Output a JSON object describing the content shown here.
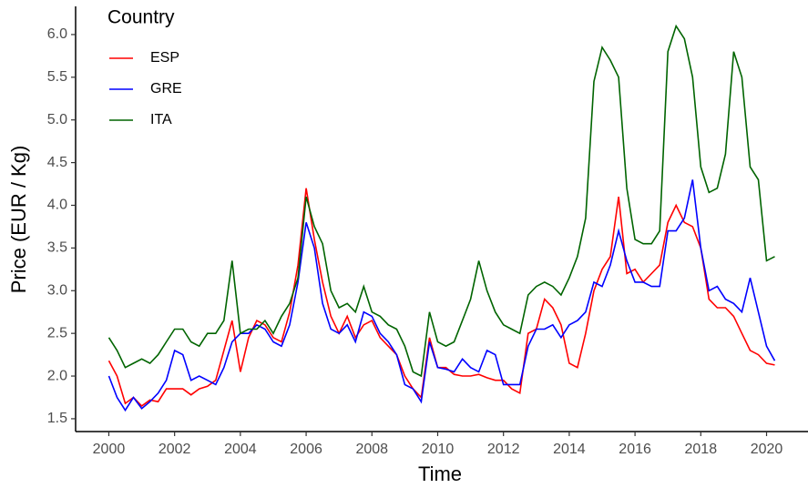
{
  "chart_data": {
    "type": "line",
    "x_label": "Time",
    "y_label": "Price (EUR / Kg)",
    "legend_title": "Country",
    "legend_position": "top-left",
    "grid": false,
    "x": [
      2000,
      2000.25,
      2000.5,
      2000.75,
      2001,
      2001.25,
      2001.5,
      2001.75,
      2002,
      2002.25,
      2002.5,
      2002.75,
      2003,
      2003.25,
      2003.5,
      2003.75,
      2004,
      2004.25,
      2004.5,
      2004.75,
      2005,
      2005.25,
      2005.5,
      2005.75,
      2006,
      2006.25,
      2006.5,
      2006.75,
      2007,
      2007.25,
      2007.5,
      2007.75,
      2008,
      2008.25,
      2008.5,
      2008.75,
      2009,
      2009.25,
      2009.5,
      2009.75,
      2010,
      2010.25,
      2010.5,
      2010.75,
      2011,
      2011.25,
      2011.5,
      2011.75,
      2012,
      2012.25,
      2012.5,
      2012.75,
      2013,
      2013.25,
      2013.5,
      2013.75,
      2014,
      2014.25,
      2014.5,
      2014.75,
      2015,
      2015.25,
      2015.5,
      2015.75,
      2016,
      2016.25,
      2016.5,
      2016.75,
      2017,
      2017.25,
      2017.5,
      2017.75,
      2018,
      2018.25,
      2018.5,
      2018.75,
      2019,
      2019.25,
      2019.5,
      2019.75,
      2020,
      2020.25
    ],
    "series": [
      {
        "name": "ESP",
        "color": "#ff0000",
        "values": [
          2.18,
          2.0,
          1.68,
          1.75,
          1.65,
          1.72,
          1.7,
          1.85,
          1.85,
          1.85,
          1.78,
          1.85,
          1.88,
          1.95,
          2.3,
          2.65,
          2.05,
          2.45,
          2.65,
          2.6,
          2.45,
          2.4,
          2.75,
          3.3,
          4.2,
          3.6,
          3.1,
          2.7,
          2.5,
          2.7,
          2.45,
          2.6,
          2.65,
          2.45,
          2.35,
          2.25,
          2.0,
          1.85,
          1.75,
          2.45,
          2.1,
          2.1,
          2.02,
          2.0,
          2.0,
          2.02,
          1.98,
          1.95,
          1.95,
          1.85,
          1.8,
          2.5,
          2.55,
          2.9,
          2.8,
          2.6,
          2.15,
          2.1,
          2.5,
          3.0,
          3.25,
          3.4,
          4.1,
          3.2,
          3.25,
          3.1,
          3.2,
          3.3,
          3.8,
          4.0,
          3.8,
          3.75,
          3.5,
          2.9,
          2.8,
          2.8,
          2.7,
          2.5,
          2.3,
          2.25,
          2.15,
          2.13
        ]
      },
      {
        "name": "GRE",
        "color": "#0000ff",
        "values": [
          2.0,
          1.75,
          1.6,
          1.75,
          1.62,
          1.7,
          1.8,
          1.95,
          2.3,
          2.25,
          1.95,
          2.0,
          1.95,
          1.9,
          2.1,
          2.4,
          2.5,
          2.5,
          2.6,
          2.55,
          2.4,
          2.35,
          2.6,
          3.1,
          3.8,
          3.5,
          2.85,
          2.55,
          2.5,
          2.6,
          2.4,
          2.75,
          2.7,
          2.5,
          2.4,
          2.25,
          1.9,
          1.85,
          1.7,
          2.4,
          2.1,
          2.08,
          2.05,
          2.2,
          2.1,
          2.05,
          2.3,
          2.25,
          1.9,
          1.9,
          1.9,
          2.35,
          2.55,
          2.55,
          2.6,
          2.45,
          2.6,
          2.65,
          2.75,
          3.1,
          3.05,
          3.3,
          3.7,
          3.35,
          3.1,
          3.1,
          3.05,
          3.05,
          3.7,
          3.7,
          3.85,
          4.3,
          3.5,
          3.0,
          3.05,
          2.9,
          2.85,
          2.75,
          3.15,
          2.75,
          2.35,
          2.18
        ]
      },
      {
        "name": "ITA",
        "color": "#006400",
        "values": [
          2.45,
          2.3,
          2.1,
          2.15,
          2.2,
          2.15,
          2.25,
          2.4,
          2.55,
          2.55,
          2.4,
          2.35,
          2.5,
          2.5,
          2.65,
          3.35,
          2.5,
          2.55,
          2.55,
          2.65,
          2.5,
          2.7,
          2.85,
          3.15,
          4.1,
          3.75,
          3.55,
          3.0,
          2.8,
          2.85,
          2.75,
          3.05,
          2.75,
          2.7,
          2.6,
          2.55,
          2.35,
          2.05,
          2.0,
          2.75,
          2.4,
          2.35,
          2.4,
          2.65,
          2.9,
          3.35,
          3.0,
          2.75,
          2.6,
          2.55,
          2.5,
          2.95,
          3.05,
          3.1,
          3.05,
          2.95,
          3.15,
          3.4,
          3.85,
          5.45,
          5.85,
          5.7,
          5.5,
          4.2,
          3.6,
          3.55,
          3.55,
          3.7,
          5.8,
          6.1,
          5.95,
          5.5,
          4.45,
          4.15,
          4.2,
          4.6,
          5.8,
          5.5,
          4.45,
          4.3,
          3.35,
          3.4
        ]
      }
    ],
    "xlim": [
      1998.99,
      2021.26
    ],
    "ylim": [
      1.35,
      6.33
    ],
    "xticks": [
      2000,
      2002,
      2004,
      2006,
      2008,
      2010,
      2012,
      2014,
      2016,
      2018,
      2020
    ],
    "yticks": [
      1.5,
      {
        "value": 2.0,
        "label": "2.0"
      },
      2.5,
      {
        "value": 3.0,
        "label": "3.0"
      },
      3.5,
      {
        "value": 4.0,
        "label": "4.0"
      },
      4.5,
      {
        "value": 5.0,
        "label": "5.0"
      },
      5.5,
      {
        "value": 6.0,
        "label": "6.0"
      }
    ]
  }
}
